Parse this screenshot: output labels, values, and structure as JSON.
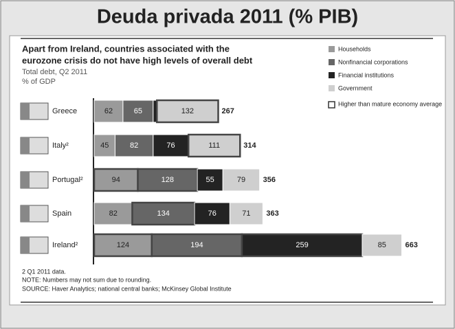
{
  "chart_data": {
    "type": "bar",
    "orientation": "horizontal",
    "stacked": true,
    "title": "Deuda privada 2011 (% PIB)",
    "subtitle_lines": [
      "Apart from Ireland, countries associated with the",
      "eurozone crisis do not have high levels of overall debt"
    ],
    "description": "Total debt, Q2 2011",
    "unit": "% of GDP",
    "categories": [
      "Greece",
      "Italy²",
      "Portugal²",
      "Spain",
      "Ireland²"
    ],
    "series": [
      {
        "name": "Households",
        "color": "#9a9a9a",
        "values": [
          62,
          45,
          94,
          82,
          124
        ],
        "outlined": [
          false,
          false,
          true,
          false,
          true
        ]
      },
      {
        "name": "Nonfinancial corporations",
        "color": "#666666",
        "values": [
          65,
          82,
          128,
          134,
          194
        ],
        "outlined": [
          false,
          false,
          true,
          true,
          true
        ]
      },
      {
        "name": "Financial institutions",
        "color": "#232323",
        "values": [
          8,
          76,
          55,
          76,
          259
        ],
        "labeled": [
          false,
          true,
          true,
          true,
          true
        ],
        "outlined": [
          false,
          false,
          false,
          false,
          true
        ]
      },
      {
        "name": "Government",
        "color": "#cfcfcf",
        "values": [
          132,
          111,
          79,
          71,
          85
        ],
        "outlined": [
          true,
          true,
          false,
          false,
          false
        ]
      }
    ],
    "totals": [
      267,
      314,
      356,
      363,
      663
    ],
    "outline_legend": "Higher than mature economy average",
    "footnotes": [
      "2  Q1 2011 data.",
      "NOTE: Numbers may not sum due to rounding.",
      "SOURCE: Haver Analytics; national central banks; McKinsey Global Institute"
    ]
  }
}
